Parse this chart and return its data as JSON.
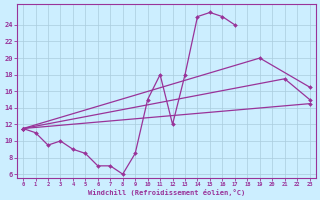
{
  "xlabel": "Windchill (Refroidissement éolien,°C)",
  "bg_color": "#cceeff",
  "grid_color": "#aaccdd",
  "line_color": "#993399",
  "xlim": [
    -0.5,
    23.5
  ],
  "ylim": [
    5.5,
    26.5
  ],
  "yticks": [
    6,
    8,
    10,
    12,
    14,
    16,
    18,
    20,
    22,
    24
  ],
  "xticks": [
    0,
    1,
    2,
    3,
    4,
    5,
    6,
    7,
    8,
    9,
    10,
    11,
    12,
    13,
    14,
    15,
    16,
    17,
    18,
    19,
    20,
    21,
    22,
    23
  ],
  "series": [
    {
      "x": [
        0,
        1,
        2,
        3,
        4,
        5,
        6,
        7,
        8,
        9,
        10,
        11,
        12,
        13,
        14,
        15,
        16,
        17
      ],
      "y": [
        11.5,
        11.0,
        9.5,
        10.0,
        9.0,
        8.5,
        7.0,
        7.0,
        6.0,
        8.5,
        15.0,
        18.0,
        12.0,
        18.0,
        25.0,
        25.5,
        25.0,
        24.0
      ]
    },
    {
      "comment": "line from ~x=0,y=11.5 to x=19,y=20 to x=23,y=16.5",
      "x": [
        0,
        19,
        23
      ],
      "y": [
        11.5,
        20.0,
        16.5
      ]
    },
    {
      "comment": "line from ~x=0,y=11.5 to x=21,y=17.5 to x=23,y=15.0",
      "x": [
        0,
        21,
        23
      ],
      "y": [
        11.5,
        17.5,
        15.0
      ]
    },
    {
      "comment": "line from ~x=0,y=11.5 straight to x=23,y=14.5",
      "x": [
        0,
        23
      ],
      "y": [
        11.5,
        14.5
      ]
    }
  ]
}
